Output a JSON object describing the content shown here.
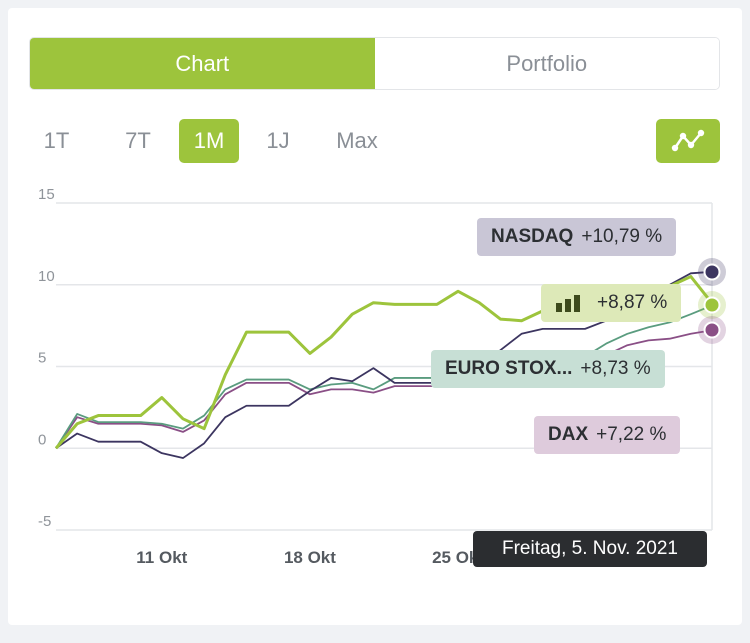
{
  "tabs": [
    {
      "label": "Chart",
      "active": true
    },
    {
      "label": "Portfolio",
      "active": false
    }
  ],
  "ranges": [
    {
      "label": "1T",
      "active": false
    },
    {
      "label": "7T",
      "active": false
    },
    {
      "label": "1M",
      "active": true
    },
    {
      "label": "1J",
      "active": false
    },
    {
      "label": "Max",
      "active": false
    }
  ],
  "toggle_icon": "line-chart-icon",
  "colors": {
    "accent": "#9dc43c",
    "nasdaq": "#3c3560",
    "portfolio": "#9dc43c",
    "eurostoxx": "#5a9c7f",
    "dax": "#8a4f86"
  },
  "labels": {
    "nasdaq": {
      "name": "NASDAQ",
      "value": "+10,79 %"
    },
    "portfolio": {
      "value": "+8,87 %"
    },
    "eurostoxx": {
      "name": "EURO STOX...",
      "value": "+8,73 %"
    },
    "dax": {
      "name": "DAX",
      "value": "+7,22 %"
    }
  },
  "tooltip": "Freitag, 5. Nov. 2021",
  "chart_data": {
    "type": "line",
    "ylim": [
      -5,
      15
    ],
    "yticks": [
      "15",
      "10",
      "5",
      "0",
      "-5"
    ],
    "xticks": [
      "11 Okt",
      "18 Okt",
      "25 Okt"
    ],
    "series": [
      {
        "name": "NASDAQ",
        "key": "nasdaq",
        "values": [
          0,
          0.9,
          0.4,
          0.4,
          0.4,
          -0.3,
          -0.6,
          0.3,
          1.9,
          2.6,
          2.6,
          2.6,
          3.5,
          4.3,
          4.1,
          4.9,
          4.0,
          4.0,
          4.0,
          4.5,
          4.8,
          6.0,
          7.0,
          7.3,
          7.3,
          7.3,
          7.8,
          8.4,
          9.3,
          10.0,
          10.7,
          10.79
        ]
      },
      {
        "name": "Portfolio",
        "key": "portfolio",
        "values": [
          0,
          1.5,
          2.0,
          2.0,
          2.0,
          3.1,
          1.8,
          1.2,
          4.5,
          7.1,
          7.1,
          7.1,
          5.8,
          6.8,
          8.2,
          8.9,
          8.8,
          8.8,
          8.8,
          9.6,
          8.9,
          7.9,
          7.8,
          8.4,
          8.7,
          8.8,
          8.8,
          9.0,
          9.4,
          9.9,
          10.5,
          8.87
        ]
      },
      {
        "name": "EURO STOX...",
        "key": "eurostoxx",
        "values": [
          0,
          2.1,
          1.6,
          1.6,
          1.6,
          1.5,
          1.2,
          2.0,
          3.6,
          4.2,
          4.2,
          4.2,
          3.6,
          3.9,
          4.0,
          3.6,
          4.3,
          4.3,
          4.3,
          4.6,
          4.6,
          4.8,
          5.2,
          5.4,
          5.5,
          5.6,
          6.4,
          7.0,
          7.4,
          7.7,
          8.2,
          8.73
        ]
      },
      {
        "name": "DAX",
        "key": "dax",
        "values": [
          0,
          1.9,
          1.5,
          1.5,
          1.5,
          1.4,
          1.0,
          1.7,
          3.3,
          4.0,
          4.0,
          4.0,
          3.3,
          3.6,
          3.6,
          3.4,
          3.8,
          3.8,
          3.8,
          4.1,
          4.1,
          4.3,
          4.6,
          4.8,
          4.9,
          5.0,
          5.7,
          6.3,
          6.6,
          6.7,
          7.0,
          7.22
        ]
      }
    ]
  }
}
